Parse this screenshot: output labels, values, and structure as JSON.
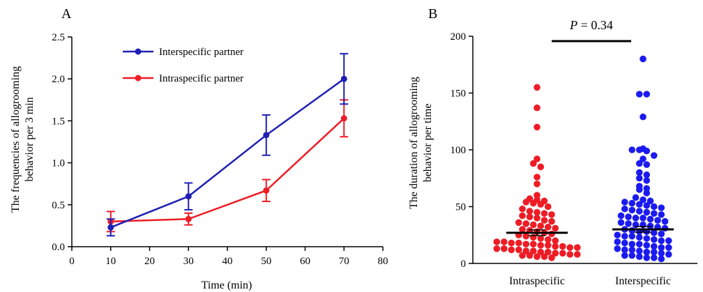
{
  "chart_data": [
    {
      "type": "line",
      "panel_label": "A",
      "xlabel": "Time (min)",
      "ylabel": [
        "The frequencies of allogrooming",
        "behavior per 3 min"
      ],
      "xlim": [
        0,
        80
      ],
      "ylim": [
        0,
        2.5
      ],
      "x_ticks": [
        "0",
        "10",
        "20",
        "30",
        "40",
        "50",
        "60",
        "70",
        "80"
      ],
      "y_ticks": [
        "0.0",
        "0.5",
        "1.0",
        "1.5",
        "2.0",
        "2.5"
      ],
      "x": [
        10,
        30,
        50,
        70
      ],
      "legend_position": "top-left",
      "series": [
        {
          "name": "Interspecific partner",
          "color": "#1f1fb4",
          "values": [
            0.23,
            0.6,
            1.33,
            2.0
          ],
          "err": [
            0.1,
            0.16,
            0.24,
            0.3
          ]
        },
        {
          "name": "Intraspecific partner",
          "color": "#ee1c25",
          "values": [
            0.3,
            0.33,
            0.67,
            1.53
          ],
          "err": [
            0.12,
            0.07,
            0.13,
            0.22
          ]
        }
      ]
    },
    {
      "type": "scatter",
      "panel_label": "B",
      "ylabel": [
        "The duration of allogrooming",
        "behavior per time"
      ],
      "ylim": [
        0,
        200
      ],
      "y_ticks": [
        "0",
        "50",
        "100",
        "150",
        "200"
      ],
      "categories": [
        "Intraspecific",
        "Interspecific"
      ],
      "annotation": {
        "prefix": "P",
        "text": " = 0.34"
      },
      "groups": [
        {
          "name": "Intraspecific",
          "color": "#ee1c25",
          "mean": 27,
          "sem": 2.5,
          "values": [
            155,
            137,
            120,
            92,
            88,
            85,
            76,
            70,
            60,
            57,
            56,
            55,
            54,
            53,
            52,
            50,
            48,
            46,
            45,
            44,
            43,
            42,
            41,
            40,
            38,
            37,
            36,
            35,
            34,
            33,
            32,
            31,
            30,
            29,
            28,
            27,
            26,
            25,
            24,
            23,
            22,
            21,
            20,
            19,
            19,
            18,
            18,
            17,
            17,
            16,
            16,
            15,
            15,
            14,
            14,
            13,
            13,
            12,
            12,
            11,
            11,
            10,
            10,
            9,
            9,
            8,
            8,
            7,
            7,
            6,
            6,
            5
          ]
        },
        {
          "name": "Interspecific",
          "color": "#1b1bf0",
          "mean": 30,
          "sem": 2.5,
          "values": [
            180,
            149,
            149,
            129,
            101,
            100,
            100,
            99,
            95,
            92,
            88,
            87,
            80,
            78,
            75,
            73,
            68,
            66,
            65,
            62,
            58,
            56,
            55,
            54,
            53,
            52,
            51,
            50,
            49,
            48,
            47,
            46,
            45,
            44,
            43,
            42,
            41,
            40,
            40,
            39,
            38,
            37,
            36,
            35,
            34,
            34,
            33,
            32,
            31,
            30,
            29,
            28,
            28,
            27,
            26,
            25,
            24,
            24,
            23,
            22,
            21,
            20,
            20,
            19,
            18,
            17,
            17,
            16,
            15,
            14,
            14,
            13,
            12,
            12,
            11,
            10,
            10,
            9,
            8,
            7,
            7,
            6,
            5,
            5,
            4
          ]
        }
      ]
    }
  ]
}
